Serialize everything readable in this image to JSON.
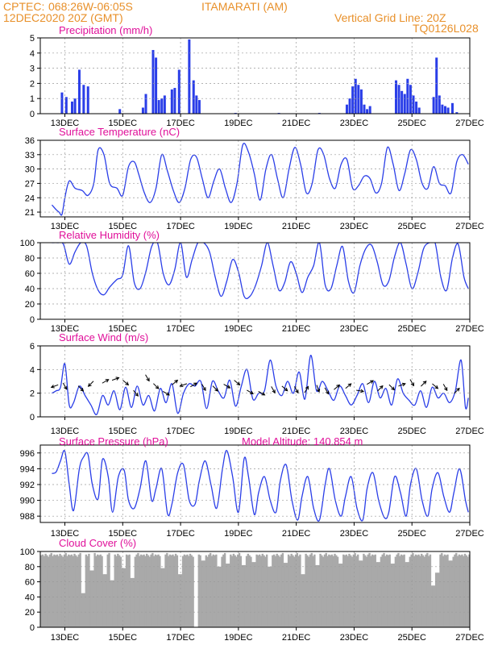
{
  "header": {
    "source": "CPTEC:",
    "coords": "068:26W-06:05S",
    "station": "ITAMARATI (AM)",
    "datetime": "12DEC2020 20Z (GMT)",
    "grid_note": "Vertical Grid Line: 20Z",
    "code": "TQ0126L028"
  },
  "x_ticks": [
    "13DEC",
    "15DEC",
    "17DEC",
    "19DEC",
    "21DEC",
    "23DEC",
    "25DEC",
    "27DEC"
  ],
  "colors": {
    "header": "#e8902a",
    "panel_title": "#e0109a",
    "series": "#2a3ee8",
    "cloud": "#a9a9a9",
    "arrow": "#000000"
  },
  "chart_data": [
    {
      "type": "bar",
      "title": "Precipitation (mm/h)",
      "ylim": [
        0,
        5
      ],
      "yticks": [
        "0",
        "1",
        "2",
        "3",
        "4",
        "5"
      ],
      "x": [
        12.9,
        13.05,
        13.25,
        13.35,
        13.5,
        13.65,
        13.8,
        14.9,
        15.7,
        15.8,
        16.05,
        16.15,
        16.25,
        16.35,
        16.45,
        16.7,
        16.8,
        16.95,
        17.3,
        17.45,
        17.55,
        17.65,
        18.9,
        20.4,
        21.8,
        22.75,
        22.85,
        22.95,
        23.05,
        23.15,
        23.25,
        23.35,
        23.45,
        23.55,
        24.45,
        24.55,
        24.65,
        24.75,
        24.85,
        24.95,
        25.05,
        25.15,
        25.25,
        25.75,
        25.85,
        25.95,
        26.05,
        26.15,
        26.25,
        26.4,
        26.55
      ],
      "values": [
        1.4,
        1.1,
        0.8,
        1.0,
        2.9,
        1.9,
        1.8,
        0.3,
        0.4,
        1.3,
        4.2,
        3.7,
        0.9,
        1.0,
        1.2,
        1.6,
        1.7,
        2.9,
        4.9,
        2.2,
        1.2,
        0.9,
        0.05,
        0.05,
        0.05,
        0.6,
        1.0,
        1.8,
        2.3,
        1.9,
        1.6,
        0.6,
        0.3,
        0.5,
        2.2,
        1.9,
        1.5,
        1.3,
        2.3,
        1.9,
        1.2,
        0.8,
        0.4,
        1.1,
        3.7,
        1.2,
        0.6,
        0.5,
        0.4,
        0.7,
        0.1
      ]
    },
    {
      "type": "line",
      "title": "Surface Temperature (nC)",
      "ylim": [
        20,
        36
      ],
      "yticks": [
        "21",
        "24",
        "27",
        "30",
        "33",
        "36"
      ],
      "x": [
        12.55,
        12.7,
        12.8,
        12.9,
        13.0,
        13.15,
        13.35,
        13.6,
        13.8,
        14.0,
        14.15,
        14.35,
        14.55,
        14.8,
        15.0,
        15.2,
        15.4,
        15.55,
        15.75,
        15.95,
        16.15,
        16.35,
        16.55,
        16.75,
        16.95,
        17.15,
        17.35,
        17.55,
        17.75,
        17.95,
        18.15,
        18.35,
        18.55,
        18.75,
        18.95,
        19.15,
        19.35,
        19.55,
        19.75,
        19.95,
        20.15,
        20.35,
        20.55,
        20.75,
        20.95,
        21.15,
        21.35,
        21.55,
        21.75,
        21.95,
        22.15,
        22.35,
        22.55,
        22.75,
        22.95,
        23.15,
        23.35,
        23.55,
        23.75,
        23.95,
        24.15,
        24.35,
        24.55,
        24.75,
        24.95,
        25.15,
        25.35,
        25.55,
        25.75,
        25.95,
        26.15,
        26.35,
        26.55,
        26.75,
        26.95
      ],
      "values": [
        22.5,
        21.5,
        21.0,
        20.5,
        24.0,
        27.5,
        26.0,
        25.5,
        24.5,
        27.0,
        34.0,
        33.0,
        27.0,
        26.0,
        24.5,
        30.5,
        31.5,
        29.0,
        25.0,
        23.0,
        26.0,
        33.0,
        29.5,
        25.5,
        23.0,
        26.0,
        32.0,
        32.5,
        28.0,
        24.0,
        27.5,
        30.0,
        26.0,
        23.0,
        27.0,
        35.0,
        33.5,
        29.0,
        23.5,
        30.0,
        33.0,
        28.0,
        24.0,
        30.0,
        34.5,
        31.0,
        25.0,
        27.0,
        34.0,
        33.0,
        28.0,
        26.0,
        31.0,
        32.0,
        26.0,
        26.5,
        28.5,
        28.0,
        25.0,
        27.0,
        34.5,
        31.0,
        25.5,
        29.0,
        34.0,
        32.0,
        27.0,
        26.0,
        30.5,
        27.0,
        26.5,
        25.0,
        31.5,
        33.0,
        31.0
      ]
    },
    {
      "type": "line",
      "title": "Relative Humidity (%)",
      "ylim": [
        0,
        100
      ],
      "yticks": [
        "0",
        "20",
        "40",
        "60",
        "80",
        "100"
      ],
      "x": [
        12.55,
        12.75,
        12.95,
        13.15,
        13.35,
        13.55,
        13.75,
        13.95,
        14.15,
        14.35,
        14.55,
        14.8,
        15.0,
        15.2,
        15.4,
        15.6,
        15.8,
        16.0,
        16.2,
        16.4,
        16.6,
        16.8,
        17.0,
        17.2,
        17.4,
        17.6,
        17.8,
        18.0,
        18.2,
        18.4,
        18.6,
        18.8,
        19.0,
        19.2,
        19.4,
        19.6,
        19.8,
        20.0,
        20.2,
        20.4,
        20.6,
        20.8,
        21.0,
        21.2,
        21.4,
        21.6,
        21.8,
        22.0,
        22.2,
        22.4,
        22.6,
        22.8,
        23.0,
        23.2,
        23.4,
        23.6,
        23.8,
        24.0,
        24.2,
        24.4,
        24.6,
        24.8,
        25.0,
        25.2,
        25.4,
        25.6,
        25.8,
        26.0,
        26.2,
        26.4,
        26.6,
        26.8,
        26.95
      ],
      "values": [
        100,
        100,
        98,
        72,
        88,
        100,
        96,
        60,
        38,
        32,
        42,
        52,
        58,
        96,
        48,
        40,
        62,
        95,
        100,
        60,
        45,
        65,
        100,
        55,
        78,
        100,
        100,
        88,
        55,
        30,
        50,
        78,
        62,
        30,
        30,
        45,
        70,
        100,
        70,
        38,
        48,
        75,
        60,
        35,
        55,
        70,
        100,
        45,
        40,
        70,
        95,
        50,
        35,
        70,
        92,
        97,
        75,
        45,
        50,
        82,
        100,
        72,
        40,
        60,
        92,
        100,
        100,
        55,
        38,
        80,
        98,
        55,
        40
      ]
    },
    {
      "type": "line",
      "title": "Surface Wind (m/s)",
      "ylim": [
        0,
        6
      ],
      "yticks": [
        "0",
        "2",
        "4",
        "6"
      ],
      "x": [
        12.55,
        12.7,
        12.85,
        13.0,
        13.15,
        13.3,
        13.5,
        13.7,
        13.9,
        14.1,
        14.3,
        14.5,
        14.7,
        14.9,
        15.1,
        15.3,
        15.5,
        15.7,
        15.9,
        16.1,
        16.3,
        16.5,
        16.7,
        16.9,
        17.1,
        17.3,
        17.5,
        17.7,
        17.9,
        18.1,
        18.3,
        18.5,
        18.7,
        18.9,
        19.1,
        19.3,
        19.5,
        19.7,
        19.9,
        20.1,
        20.3,
        20.5,
        20.7,
        20.9,
        21.1,
        21.3,
        21.5,
        21.7,
        21.9,
        22.1,
        22.3,
        22.5,
        22.7,
        22.9,
        23.1,
        23.3,
        23.5,
        23.7,
        23.9,
        24.1,
        24.3,
        24.5,
        24.7,
        24.9,
        25.1,
        25.3,
        25.5,
        25.7,
        25.9,
        26.1,
        26.3,
        26.5,
        26.7,
        26.85,
        26.95
      ],
      "values": [
        2.0,
        2.2,
        2.5,
        4.5,
        1.0,
        1.2,
        2.6,
        1.8,
        1.0,
        0.2,
        1.8,
        1.0,
        2.2,
        0.6,
        2.5,
        0.8,
        2.6,
        1.0,
        1.8,
        0.5,
        2.4,
        1.2,
        2.8,
        0.3,
        2.0,
        2.8,
        2.6,
        3.0,
        0.7,
        3.0,
        2.2,
        1.6,
        3.1,
        0.9,
        2.6,
        4.0,
        1.5,
        2.0,
        2.2,
        4.8,
        2.6,
        1.8,
        3.0,
        2.0,
        3.8,
        1.5,
        5.2,
        2.2,
        3.0,
        2.2,
        1.4,
        2.6,
        1.8,
        1.0,
        1.8,
        2.8,
        1.2,
        3.0,
        1.6,
        2.4,
        1.0,
        3.2,
        2.0,
        1.4,
        1.0,
        2.2,
        0.8,
        2.5,
        1.6,
        2.0,
        1.2,
        2.2,
        4.8,
        0.8,
        1.6
      ],
      "barbs": [
        {
          "x": 12.65,
          "y": 2.6,
          "dir_deg": 200
        },
        {
          "x": 13.0,
          "y": 2.6,
          "dir_deg": 300
        },
        {
          "x": 13.55,
          "y": 2.4,
          "dir_deg": 315
        },
        {
          "x": 13.9,
          "y": 2.8,
          "dir_deg": 225
        },
        {
          "x": 14.4,
          "y": 3.0,
          "dir_deg": 30
        },
        {
          "x": 14.75,
          "y": 3.2,
          "dir_deg": 20
        },
        {
          "x": 15.1,
          "y": 2.9,
          "dir_deg": 320
        },
        {
          "x": 15.45,
          "y": 2.0,
          "dir_deg": 310
        },
        {
          "x": 15.85,
          "y": 3.3,
          "dir_deg": 300
        },
        {
          "x": 16.15,
          "y": 2.6,
          "dir_deg": 315
        },
        {
          "x": 16.5,
          "y": 2.0,
          "dir_deg": 330
        },
        {
          "x": 16.8,
          "y": 2.9,
          "dir_deg": 40
        },
        {
          "x": 17.1,
          "y": 2.7,
          "dir_deg": 200
        },
        {
          "x": 17.45,
          "y": 2.7,
          "dir_deg": 30
        },
        {
          "x": 17.8,
          "y": 2.5,
          "dir_deg": 300
        },
        {
          "x": 18.2,
          "y": 2.4,
          "dir_deg": 315
        },
        {
          "x": 18.6,
          "y": 2.6,
          "dir_deg": 330
        },
        {
          "x": 18.95,
          "y": 2.9,
          "dir_deg": 320
        },
        {
          "x": 19.4,
          "y": 2.1,
          "dir_deg": 330
        },
        {
          "x": 19.8,
          "y": 2.0,
          "dir_deg": 330
        },
        {
          "x": 20.2,
          "y": 2.3,
          "dir_deg": 300
        },
        {
          "x": 20.6,
          "y": 2.4,
          "dir_deg": 320
        },
        {
          "x": 21.0,
          "y": 2.3,
          "dir_deg": 300
        },
        {
          "x": 21.35,
          "y": 2.3,
          "dir_deg": 60
        },
        {
          "x": 21.75,
          "y": 2.4,
          "dir_deg": 290
        },
        {
          "x": 22.05,
          "y": 2.2,
          "dir_deg": 300
        },
        {
          "x": 22.4,
          "y": 2.5,
          "dir_deg": 40
        },
        {
          "x": 22.8,
          "y": 2.6,
          "dir_deg": 40
        },
        {
          "x": 23.2,
          "y": 2.2,
          "dir_deg": 350
        },
        {
          "x": 23.55,
          "y": 2.9,
          "dir_deg": 30
        },
        {
          "x": 23.9,
          "y": 2.4,
          "dir_deg": 45
        },
        {
          "x": 24.3,
          "y": 2.5,
          "dir_deg": 315
        },
        {
          "x": 24.65,
          "y": 2.7,
          "dir_deg": 20
        },
        {
          "x": 25.0,
          "y": 2.9,
          "dir_deg": 300
        },
        {
          "x": 25.4,
          "y": 2.8,
          "dir_deg": 45
        },
        {
          "x": 25.8,
          "y": 2.6,
          "dir_deg": 320
        },
        {
          "x": 26.15,
          "y": 2.5,
          "dir_deg": 300
        },
        {
          "x": 26.55,
          "y": 2.2,
          "dir_deg": 45
        }
      ]
    },
    {
      "type": "line",
      "title": "Surface Pressure (hPa)",
      "subtitle": "Model Altitude: 140.854 m",
      "ylim": [
        987.2,
        997
      ],
      "yticks": [
        "988",
        "990",
        "992",
        "994",
        "996"
      ],
      "x": [
        12.55,
        12.7,
        12.85,
        13.0,
        13.15,
        13.3,
        13.5,
        13.65,
        13.8,
        13.95,
        14.15,
        14.3,
        14.5,
        14.65,
        14.85,
        15.05,
        15.2,
        15.4,
        15.6,
        15.8,
        16.0,
        16.15,
        16.35,
        16.55,
        16.7,
        16.9,
        17.1,
        17.3,
        17.5,
        17.65,
        17.85,
        18.05,
        18.25,
        18.45,
        18.6,
        18.8,
        19.0,
        19.2,
        19.35,
        19.55,
        19.7,
        19.9,
        20.1,
        20.3,
        20.45,
        20.65,
        20.85,
        21.05,
        21.2,
        21.4,
        21.6,
        21.8,
        22.0,
        22.15,
        22.35,
        22.55,
        22.7,
        22.9,
        23.1,
        23.3,
        23.45,
        23.65,
        23.85,
        24.05,
        24.2,
        24.4,
        24.6,
        24.8,
        24.95,
        25.15,
        25.35,
        25.55,
        25.7,
        25.9,
        26.1,
        26.3,
        26.45,
        26.65,
        26.85,
        26.95
      ],
      "values": [
        993.4,
        993.6,
        995.0,
        996.2,
        992.0,
        988.7,
        994.0,
        995.5,
        995.8,
        992.0,
        990.2,
        995.2,
        993.0,
        988.5,
        993.0,
        993.8,
        990.0,
        989.0,
        991.5,
        995.0,
        990.0,
        991.5,
        994.0,
        988.3,
        989.5,
        993.5,
        994.5,
        990.0,
        989.5,
        992.5,
        995.0,
        992.0,
        989.0,
        994.0,
        996.3,
        993.0,
        988.5,
        995.3,
        993.0,
        988.2,
        991.0,
        993.0,
        990.0,
        988.5,
        992.5,
        994.5,
        990.0,
        987.5,
        990.5,
        993.0,
        989.0,
        987.5,
        992.0,
        994.0,
        990.0,
        988.0,
        990.5,
        993.0,
        989.0,
        987.5,
        991.5,
        993.5,
        990.0,
        987.8,
        988.5,
        993.0,
        991.0,
        988.0,
        992.0,
        994.0,
        990.0,
        988.0,
        991.5,
        993.5,
        990.5,
        988.5,
        991.0,
        994.0,
        990.0,
        988.5
      ]
    },
    {
      "type": "bar",
      "title": "Cloud Cover (%)",
      "ylim": [
        0,
        100
      ],
      "yticks": [
        "0",
        "20",
        "40",
        "60",
        "80",
        "100"
      ],
      "x_range": [
        12.15,
        27.0
      ],
      "step": 0.05,
      "base_values": [
        95,
        96,
        94,
        97,
        95,
        93,
        96,
        98,
        94,
        96
      ],
      "dips": [
        {
          "at": 13.6,
          "value": 45
        },
        {
          "at": 13.9,
          "value": 75
        },
        {
          "at": 14.35,
          "value": 70
        },
        {
          "at": 14.6,
          "value": 62
        },
        {
          "at": 15.0,
          "value": 78
        },
        {
          "at": 15.3,
          "value": 65
        },
        {
          "at": 16.35,
          "value": 78
        },
        {
          "at": 16.95,
          "value": 70
        },
        {
          "at": 17.5,
          "value": 0
        },
        {
          "at": 17.75,
          "value": 88
        },
        {
          "at": 18.3,
          "value": 80
        },
        {
          "at": 18.6,
          "value": 84
        },
        {
          "at": 19.15,
          "value": 82
        },
        {
          "at": 19.5,
          "value": 86
        },
        {
          "at": 20.05,
          "value": 80
        },
        {
          "at": 20.6,
          "value": 85
        },
        {
          "at": 21.2,
          "value": 70
        },
        {
          "at": 21.7,
          "value": 82
        },
        {
          "at": 22.5,
          "value": 84
        },
        {
          "at": 23.2,
          "value": 88
        },
        {
          "at": 23.8,
          "value": 86
        },
        {
          "at": 24.3,
          "value": 84
        },
        {
          "at": 24.8,
          "value": 86
        },
        {
          "at": 25.7,
          "value": 55
        },
        {
          "at": 25.85,
          "value": 72
        },
        {
          "at": 26.3,
          "value": 88
        }
      ]
    }
  ]
}
